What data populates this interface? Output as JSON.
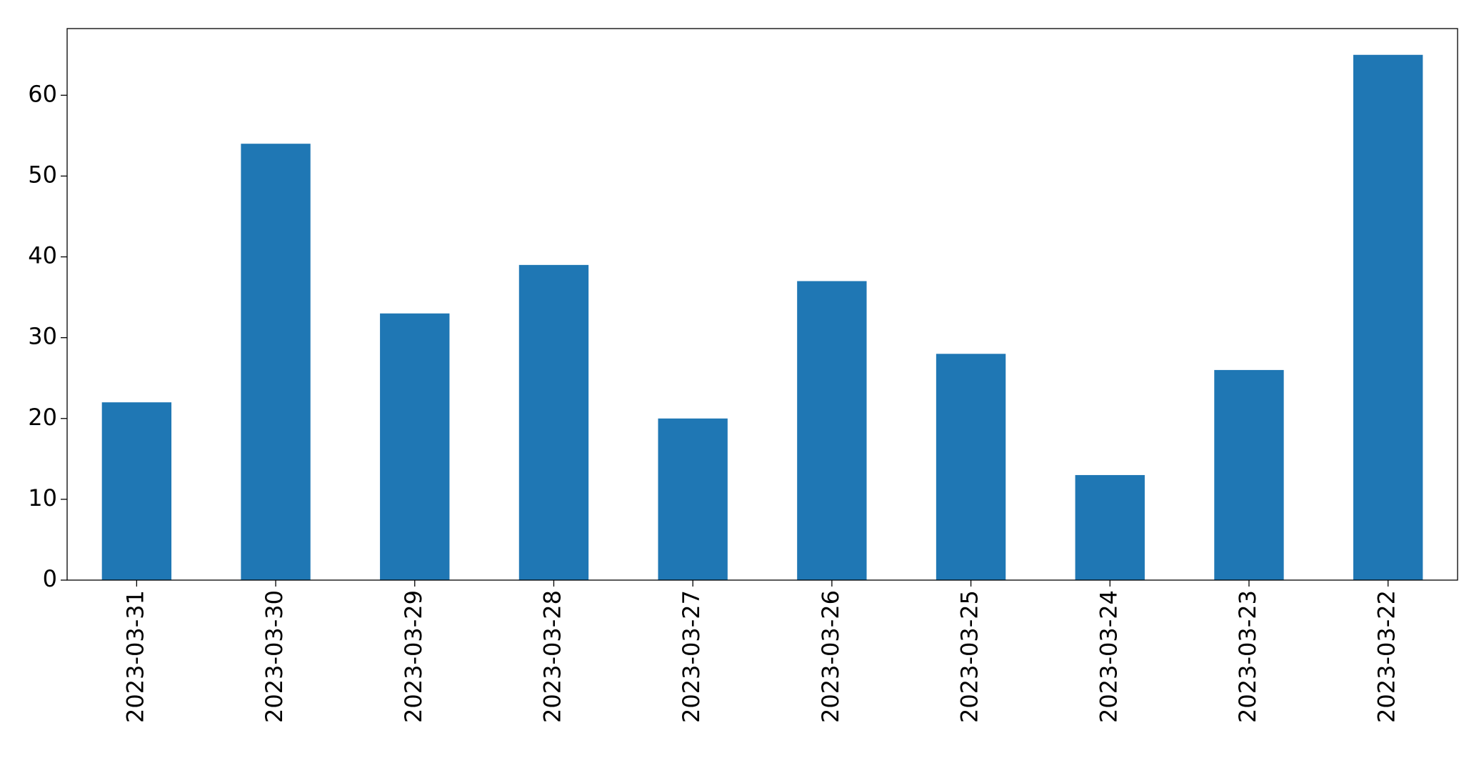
{
  "chart_data": {
    "type": "bar",
    "categories": [
      "2023-03-31",
      "2023-03-30",
      "2023-03-29",
      "2023-03-28",
      "2023-03-27",
      "2023-03-26",
      "2023-03-25",
      "2023-03-24",
      "2023-03-23",
      "2023-03-22"
    ],
    "values": [
      22,
      54,
      33,
      39,
      20,
      37,
      28,
      13,
      26,
      65
    ],
    "color": "#1f77b4",
    "ylim": [
      0,
      68.25
    ],
    "yticks": [
      0,
      10,
      20,
      30,
      40,
      50,
      60
    ],
    "grid": false
  }
}
